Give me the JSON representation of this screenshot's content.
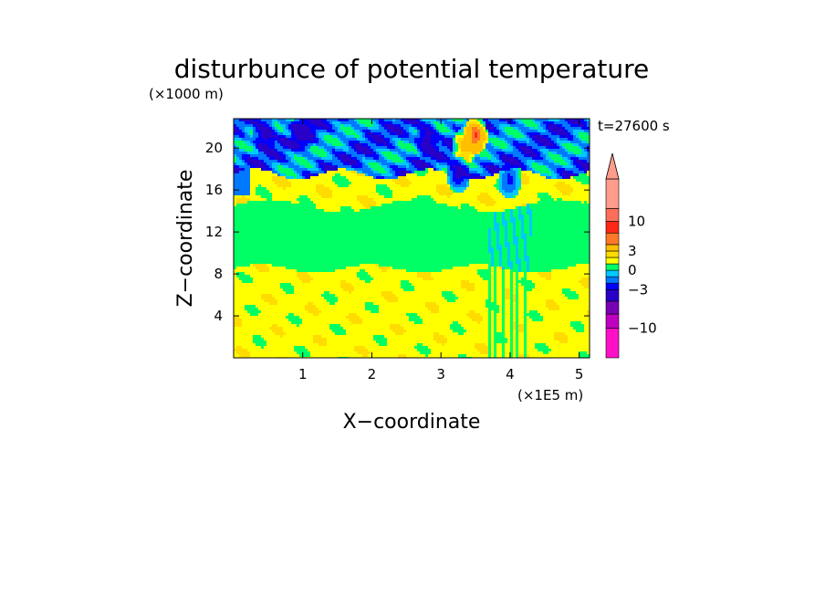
{
  "chart_data": {
    "type": "heatmap",
    "title": "disturbunce of potential temperature",
    "time_label": "t=27600 s",
    "xlabel": "X−coordinate",
    "ylabel": "Z−coordinate",
    "x_unit": "(×1E5 m)",
    "y_unit": "(×1000 m)",
    "xlim": [
      0,
      5.15
    ],
    "ylim": [
      0,
      22.8
    ],
    "x_ticks": [
      1,
      2,
      3,
      4,
      5
    ],
    "x_tick_labels": [
      "1",
      "2",
      "3",
      "4",
      "5"
    ],
    "y_ticks": [
      4,
      8,
      12,
      16,
      20
    ],
    "y_tick_labels": [
      "4",
      "8",
      "12",
      "16",
      "20"
    ],
    "colorbar": {
      "levels": [
        -20,
        -10,
        -7,
        -5,
        -3,
        -2,
        -1,
        0,
        1,
        2,
        3,
        5,
        7,
        10,
        20
      ],
      "colors": [
        "#ff10c8",
        "#c000c0",
        "#7800b4",
        "#2800c8",
        "#0000ff",
        "#0078ff",
        "#00c8ff",
        "#00ff64",
        "#ffff00",
        "#ffdc00",
        "#ffbe00",
        "#ff7828",
        "#ff2818",
        "#ff6e5a",
        "#ff9c8c"
      ],
      "tick_values": [
        10,
        3,
        0,
        -3,
        -10
      ],
      "tick_labels": [
        "10",
        "3",
        "0",
        "−3",
        "−10"
      ]
    },
    "bands": [
      {
        "z_range": [
          0,
          8.5
        ],
        "dominant_value": 1.5,
        "description_color": "#ffff00"
      },
      {
        "z_range": [
          8.5,
          14.5
        ],
        "dominant_value": 0.5,
        "description_color": "#00ff64"
      },
      {
        "z_range": [
          14.5,
          17.5
        ],
        "dominant_value": 1.5,
        "description_color": "#ffff00"
      },
      {
        "z_range": [
          17.5,
          22.8
        ],
        "dominant_value": -2,
        "description_color": "#0078ff"
      }
    ],
    "extrema": [
      {
        "x": 3.5,
        "z": 21.2,
        "value": 8,
        "kind": "max"
      },
      {
        "x": 3.35,
        "z": 20.2,
        "value": 5,
        "kind": "max"
      },
      {
        "x": 0.45,
        "z": 21.3,
        "value": -4,
        "kind": "min"
      },
      {
        "x": 1.0,
        "z": 21.5,
        "value": -4,
        "kind": "min"
      },
      {
        "x": 2.8,
        "z": 20.8,
        "value": -4,
        "kind": "min"
      },
      {
        "x": 3.25,
        "z": 17.5,
        "value": -4,
        "kind": "min"
      },
      {
        "x": 4.0,
        "z": 17.0,
        "value": -3,
        "kind": "min"
      }
    ]
  }
}
